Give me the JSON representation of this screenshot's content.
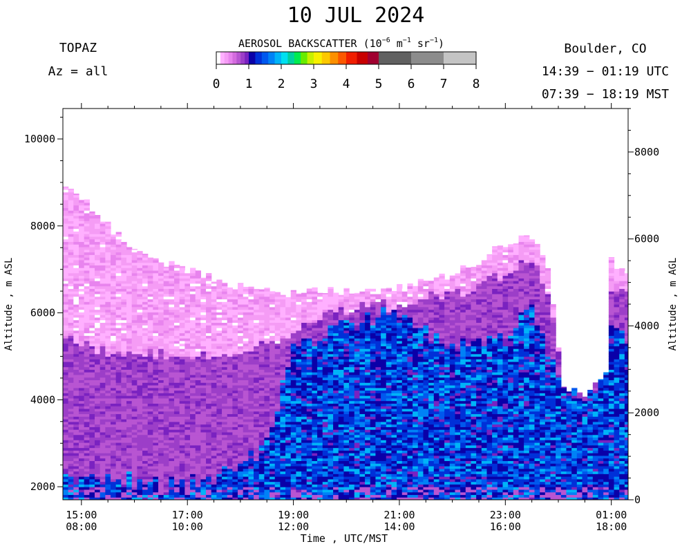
{
  "chart_data": {
    "type": "heatmap",
    "title": "10 JUL 2024",
    "instrument": "TOPAZ",
    "azimuth": "Az = all",
    "location": "Boulder, CO",
    "utc_range": "14:39 − 01:19 UTC",
    "mst_range": "07:39 − 18:19 MST",
    "colorbar": {
      "label_main": "AEROSOL BACKSCATTER (10",
      "label_exp1": "−6",
      "label_mid1": " m",
      "label_exp2": "−1",
      "label_mid2": " sr",
      "label_exp3": "−1",
      "label_end": ")",
      "ticks": [
        "0",
        "1",
        "2",
        "3",
        "4",
        "5",
        "6",
        "7",
        "8"
      ],
      "range": [
        0,
        8
      ],
      "colors": [
        "#ffb0ff",
        "#f59cf5",
        "#e884ee",
        "#d46cde",
        "#b855d2",
        "#9c3ec8",
        "#7a22c0",
        "#0a00a8",
        "#0030d8",
        "#0058ee",
        "#0082f6",
        "#00b4f8",
        "#00e0f0",
        "#00d0a0",
        "#00ec50",
        "#68ec00",
        "#c8f000",
        "#f8f000",
        "#fcc800",
        "#fc9000",
        "#fc5800",
        "#f01e00",
        "#c80000",
        "#a00030",
        "#606060",
        "#8c8c8c",
        "#c4c4c4"
      ],
      "segments": [
        {
          "from": 0.0,
          "to": 0.125,
          "color": "#ffffff"
        },
        {
          "from": 0.125,
          "to": 0.25,
          "color": "#ffb0ff"
        },
        {
          "from": 0.25,
          "to": 0.375,
          "color": "#f59cf5"
        },
        {
          "from": 0.375,
          "to": 0.5,
          "color": "#e884ee"
        },
        {
          "from": 0.5,
          "to": 0.625,
          "color": "#d46cde"
        },
        {
          "from": 0.625,
          "to": 0.75,
          "color": "#b855d2"
        },
        {
          "from": 0.75,
          "to": 0.875,
          "color": "#9c3ec8"
        },
        {
          "from": 0.875,
          "to": 1.0,
          "color": "#7a22c0"
        },
        {
          "from": 1.0,
          "to": 1.2,
          "color": "#0a00a8"
        },
        {
          "from": 1.2,
          "to": 1.4,
          "color": "#0030d8"
        },
        {
          "from": 1.4,
          "to": 1.6,
          "color": "#0058ee"
        },
        {
          "from": 1.6,
          "to": 1.8,
          "color": "#0082f6"
        },
        {
          "from": 1.8,
          "to": 2.0,
          "color": "#00b4f8"
        },
        {
          "from": 2.0,
          "to": 2.2,
          "color": "#00e0f0"
        },
        {
          "from": 2.2,
          "to": 2.4,
          "color": "#00d0a0"
        },
        {
          "from": 2.4,
          "to": 2.6,
          "color": "#00ec50"
        },
        {
          "from": 2.6,
          "to": 2.8,
          "color": "#68ec00"
        },
        {
          "from": 2.8,
          "to": 3.0,
          "color": "#c8f000"
        },
        {
          "from": 3.0,
          "to": 3.25,
          "color": "#f8f000"
        },
        {
          "from": 3.25,
          "to": 3.5,
          "color": "#fcc800"
        },
        {
          "from": 3.5,
          "to": 3.75,
          "color": "#fc9000"
        },
        {
          "from": 3.75,
          "to": 4.0,
          "color": "#fc5800"
        },
        {
          "from": 4.0,
          "to": 4.33,
          "color": "#f01e00"
        },
        {
          "from": 4.33,
          "to": 4.66,
          "color": "#c80000"
        },
        {
          "from": 4.66,
          "to": 5.0,
          "color": "#a00030"
        },
        {
          "from": 5.0,
          "to": 6.0,
          "color": "#606060"
        },
        {
          "from": 6.0,
          "to": 7.0,
          "color": "#8c8c8c"
        },
        {
          "from": 7.0,
          "to": 8.0,
          "color": "#c4c4c4"
        }
      ]
    },
    "x_axis": {
      "label": "Time , UTC/MST",
      "range_utc_hours": [
        14.65,
        25.317
      ],
      "ticks": [
        {
          "utc": "15:00",
          "mst": "08:00",
          "value": 15
        },
        {
          "utc": "17:00",
          "mst": "10:00",
          "value": 17
        },
        {
          "utc": "19:00",
          "mst": "12:00",
          "value": 19
        },
        {
          "utc": "21:00",
          "mst": "14:00",
          "value": 21
        },
        {
          "utc": "23:00",
          "mst": "16:00",
          "value": 23
        },
        {
          "utc": "01:00",
          "mst": "18:00",
          "value": 25
        }
      ]
    },
    "y_axis_left": {
      "label": "Altitude , m ASL",
      "range": [
        1700,
        10700
      ],
      "ticks": [
        "2000",
        "4000",
        "6000",
        "8000",
        "10000"
      ],
      "tick_values": [
        2000,
        4000,
        6000,
        8000,
        10000
      ]
    },
    "y_axis_right": {
      "label": "Altitude , m AGL",
      "ticks": [
        "0",
        "2000",
        "4000",
        "6000",
        "8000"
      ],
      "tick_values": [
        0,
        2000,
        4000,
        6000,
        8000
      ],
      "surface_asl": 1700
    },
    "profile_columns": [
      {
        "t": 14.65,
        "top": 8900,
        "pink_bottom": 5500,
        "blue_top": 2200
      },
      {
        "t": 15.0,
        "top": 8700,
        "pink_bottom": 5250,
        "blue_top": 2200
      },
      {
        "t": 15.5,
        "top": 8000,
        "pink_bottom": 5100,
        "blue_top": 2150
      },
      {
        "t": 16.0,
        "top": 7500,
        "pink_bottom": 5000,
        "blue_top": 2100
      },
      {
        "t": 16.5,
        "top": 7200,
        "pink_bottom": 5000,
        "blue_top": 2050
      },
      {
        "t": 17.0,
        "top": 7000,
        "pink_bottom": 5000,
        "blue_top": 2100
      },
      {
        "t": 17.5,
        "top": 6800,
        "pink_bottom": 5050,
        "blue_top": 2200
      },
      {
        "t": 18.0,
        "top": 6600,
        "pink_bottom": 5100,
        "blue_top": 2400
      },
      {
        "t": 18.5,
        "top": 6500,
        "pink_bottom": 5300,
        "blue_top": 3000
      },
      {
        "t": 19.0,
        "top": 6450,
        "pink_bottom": 5600,
        "blue_top": 5100
      },
      {
        "t": 19.5,
        "top": 6500,
        "pink_bottom": 5900,
        "blue_top": 5400
      },
      {
        "t": 20.0,
        "top": 6500,
        "pink_bottom": 6000,
        "blue_top": 5700
      },
      {
        "t": 20.5,
        "top": 6550,
        "pink_bottom": 6100,
        "blue_top": 5900
      },
      {
        "t": 21.0,
        "top": 6600,
        "pink_bottom": 6200,
        "blue_top": 6000
      },
      {
        "t": 21.5,
        "top": 6700,
        "pink_bottom": 6300,
        "blue_top": 5600
      },
      {
        "t": 22.0,
        "top": 6900,
        "pink_bottom": 6400,
        "blue_top": 5300
      },
      {
        "t": 22.5,
        "top": 7200,
        "pink_bottom": 6600,
        "blue_top": 5200
      },
      {
        "t": 23.0,
        "top": 7600,
        "pink_bottom": 6900,
        "blue_top": 5400
      },
      {
        "t": 23.5,
        "top": 7800,
        "pink_bottom": 7200,
        "blue_top": 6300
      },
      {
        "t": 23.8,
        "top": 7000,
        "pink_bottom": 6500,
        "blue_top": 5000
      },
      {
        "t": 24.1,
        "top": 4300,
        "pink_bottom": 4300,
        "blue_top": 4300
      },
      {
        "t": 24.5,
        "top": 4100,
        "pink_bottom": 4100,
        "blue_top": 4100
      },
      {
        "t": 24.9,
        "top": 4600,
        "pink_bottom": 4600,
        "blue_top": 4600
      },
      {
        "t": 25.0,
        "top": 7200,
        "pink_bottom": 6600,
        "blue_top": 5600
      },
      {
        "t": 25.317,
        "top": 6900,
        "pink_bottom": 6500,
        "blue_top": 5400
      }
    ]
  }
}
